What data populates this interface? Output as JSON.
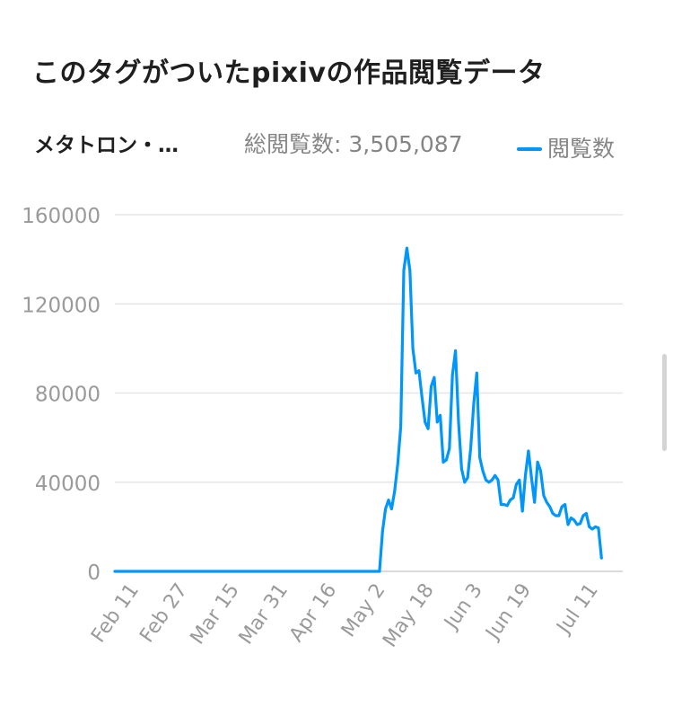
{
  "header": {
    "title": "このタグがついたpixivの作品閲覧データ"
  },
  "summary": {
    "tag_name": "メタトロン・…",
    "total_views": "総閲覧数: 3,505,087",
    "legend_label": "閲覧数"
  },
  "colors": {
    "series": "#0096fa",
    "grid": "#e6e6e6",
    "axis_text": "#9a9a9a"
  },
  "chart_data": {
    "type": "line",
    "title": "",
    "xlabel": "",
    "ylabel": "",
    "start_date": "2024-02-03",
    "end_date": "2024-07-19",
    "ylim": [
      0,
      160000
    ],
    "yticks": [
      0,
      40000,
      80000,
      120000,
      160000
    ],
    "ytick_labels": [
      "0",
      "40000",
      "80000",
      "120000",
      "160000"
    ],
    "xtick_labels": [
      "Feb 11",
      "Feb 27",
      "Mar 15",
      "Mar 31",
      "Apr 16",
      "May 2",
      "May 18",
      "Jun 3",
      "Jun 19",
      "Jul 11"
    ],
    "grid": true,
    "legend_position": "top-right",
    "series": [
      {
        "name": "閲覧数",
        "points": [
          [
            "2024-02-03",
            0
          ],
          [
            "2024-04-30",
            0
          ],
          [
            "2024-05-01",
            18000
          ],
          [
            "2024-05-02",
            28000
          ],
          [
            "2024-05-03",
            32000
          ],
          [
            "2024-05-04",
            28000
          ],
          [
            "2024-05-05",
            36000
          ],
          [
            "2024-05-06",
            48000
          ],
          [
            "2024-05-07",
            65000
          ],
          [
            "2024-05-08",
            135000
          ],
          [
            "2024-05-09",
            145000
          ],
          [
            "2024-05-10",
            135000
          ],
          [
            "2024-05-11",
            100000
          ],
          [
            "2024-05-12",
            89000
          ],
          [
            "2024-05-13",
            90000
          ],
          [
            "2024-05-14",
            78000
          ],
          [
            "2024-05-15",
            67000
          ],
          [
            "2024-05-16",
            64000
          ],
          [
            "2024-05-17",
            83000
          ],
          [
            "2024-05-18",
            87000
          ],
          [
            "2024-05-19",
            67000
          ],
          [
            "2024-05-20",
            70000
          ],
          [
            "2024-05-21",
            49000
          ],
          [
            "2024-05-22",
            50000
          ],
          [
            "2024-05-23",
            55000
          ],
          [
            "2024-05-24",
            88000
          ],
          [
            "2024-05-25",
            99000
          ],
          [
            "2024-05-26",
            67000
          ],
          [
            "2024-05-27",
            46000
          ],
          [
            "2024-05-28",
            40000
          ],
          [
            "2024-05-29",
            42000
          ],
          [
            "2024-05-30",
            55000
          ],
          [
            "2024-05-31",
            75000
          ],
          [
            "2024-06-01",
            89000
          ],
          [
            "2024-06-02",
            51000
          ],
          [
            "2024-06-03",
            45000
          ],
          [
            "2024-06-04",
            41000
          ],
          [
            "2024-06-05",
            40000
          ],
          [
            "2024-06-06",
            41000
          ],
          [
            "2024-06-07",
            43000
          ],
          [
            "2024-06-08",
            41000
          ],
          [
            "2024-06-09",
            30000
          ],
          [
            "2024-06-10",
            30000
          ],
          [
            "2024-06-11",
            29500
          ],
          [
            "2024-06-12",
            32000
          ],
          [
            "2024-06-13",
            33000
          ],
          [
            "2024-06-14",
            39000
          ],
          [
            "2024-06-15",
            41000
          ],
          [
            "2024-06-16",
            27000
          ],
          [
            "2024-06-17",
            43000
          ],
          [
            "2024-06-18",
            54000
          ],
          [
            "2024-06-19",
            42000
          ],
          [
            "2024-06-20",
            31000
          ],
          [
            "2024-06-21",
            49000
          ],
          [
            "2024-06-22",
            45000
          ],
          [
            "2024-06-23",
            34000
          ],
          [
            "2024-06-24",
            31000
          ],
          [
            "2024-06-25",
            29000
          ],
          [
            "2024-06-26",
            26000
          ],
          [
            "2024-06-27",
            25000
          ],
          [
            "2024-06-28",
            25000
          ],
          [
            "2024-06-29",
            29000
          ],
          [
            "2024-06-30",
            30000
          ],
          [
            "2024-07-01",
            21000
          ],
          [
            "2024-07-02",
            24000
          ],
          [
            "2024-07-03",
            23000
          ],
          [
            "2024-07-04",
            21000
          ],
          [
            "2024-07-05",
            21500
          ],
          [
            "2024-07-06",
            25000
          ],
          [
            "2024-07-07",
            26000
          ],
          [
            "2024-07-08",
            20000
          ],
          [
            "2024-07-09",
            19000
          ],
          [
            "2024-07-10",
            20000
          ],
          [
            "2024-07-11",
            19500
          ],
          [
            "2024-07-12",
            6000
          ]
        ]
      }
    ]
  }
}
